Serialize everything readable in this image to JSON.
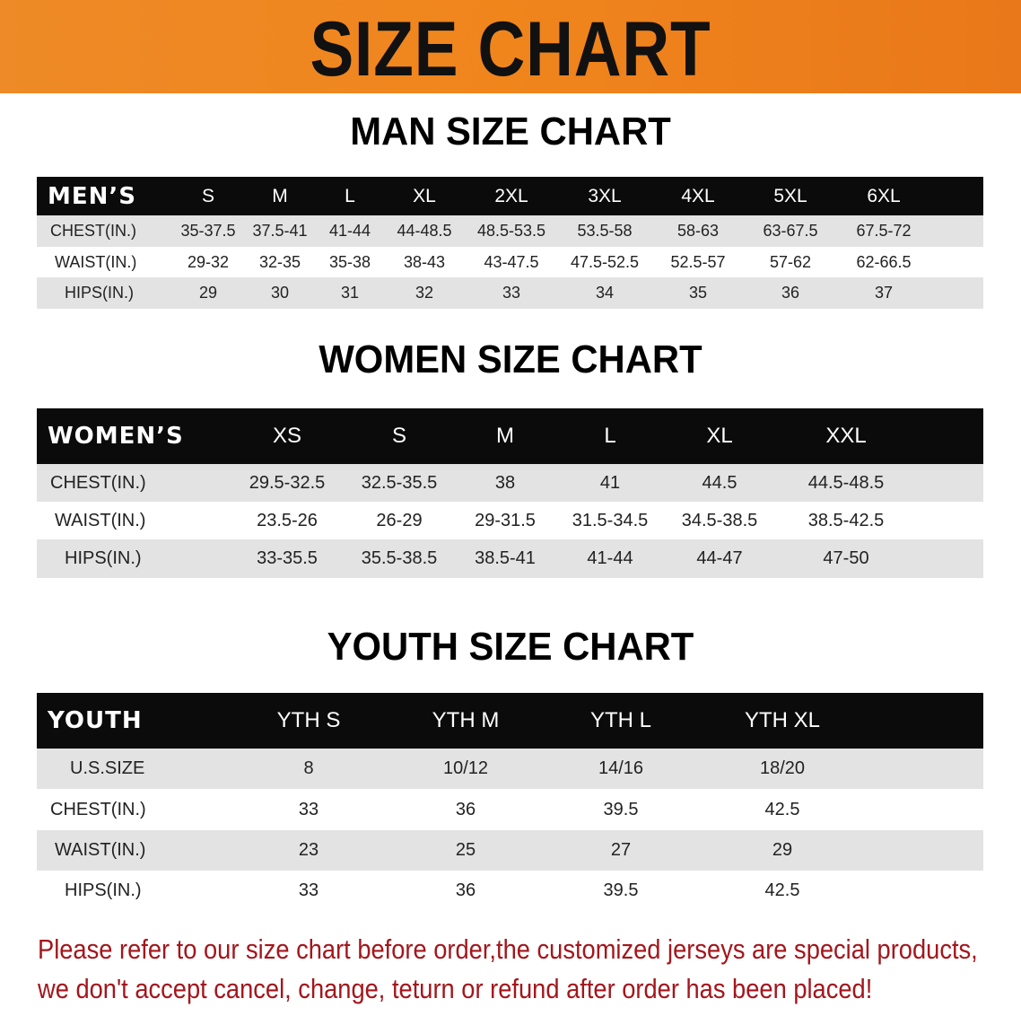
{
  "banner": {
    "title": "SIZE CHART",
    "color": "#ee8a27"
  },
  "men": {
    "title": "MAN SIZE CHART",
    "header_label": "MEN’S",
    "sizes": [
      "S",
      "M",
      "L",
      "XL",
      "2XL",
      "3XL",
      "4XL",
      "5XL",
      "6XL"
    ],
    "rows": [
      {
        "label": "CHEST(IN.)",
        "values": [
          "35-37.5",
          "37.5-41",
          "41-44",
          "44-48.5",
          "48.5-53.5",
          "53.5-58",
          "58-63",
          "63-67.5",
          "67.5-72"
        ]
      },
      {
        "label": "WAIST(IN.)",
        "values": [
          "29-32",
          "32-35",
          "35-38",
          "38-43",
          "43-47.5",
          "47.5-52.5",
          "52.5-57",
          "57-62",
          "62-66.5"
        ]
      },
      {
        "label": "HIPS(IN.)",
        "values": [
          "29",
          "30",
          "31",
          "32",
          "33",
          "34",
          "35",
          "36",
          "37"
        ]
      }
    ]
  },
  "women": {
    "title": "WOMEN SIZE CHART",
    "header_label": "WOMEN’S",
    "sizes": [
      "XS",
      "S",
      "M",
      "L",
      "XL",
      "XXL"
    ],
    "rows": [
      {
        "label": "CHEST(IN.)",
        "values": [
          "29.5-32.5",
          "32.5-35.5",
          "38",
          "41",
          "44.5",
          "44.5-48.5"
        ]
      },
      {
        "label": "WAIST(IN.)",
        "values": [
          "23.5-26",
          "26-29",
          "29-31.5",
          "31.5-34.5",
          "34.5-38.5",
          "38.5-42.5"
        ]
      },
      {
        "label": "HIPS(IN.)",
        "values": [
          "33-35.5",
          "35.5-38.5",
          "38.5-41",
          "41-44",
          "44-47",
          "47-50"
        ]
      }
    ]
  },
  "youth": {
    "title": "YOUTH SIZE CHART",
    "header_label": "YOUTH",
    "sizes": [
      "YTH S",
      "YTH M",
      "YTH L",
      "YTH XL"
    ],
    "rows": [
      {
        "label": "U.S.SIZE",
        "values": [
          "8",
          "10/12",
          "14/16",
          "18/20"
        ]
      },
      {
        "label": "CHEST(IN.)",
        "values": [
          "33",
          "36",
          "39.5",
          "42.5"
        ]
      },
      {
        "label": "WAIST(IN.)",
        "values": [
          "23",
          "25",
          "27",
          "29"
        ]
      },
      {
        "label": "HIPS(IN.)",
        "values": [
          "33",
          "36",
          "39.5",
          "42.5"
        ]
      }
    ]
  },
  "note": {
    "line1": "Please refer to our size chart before order,the customized jerseys are special products,",
    "line2": "we don't accept cancel, change, teturn or refund after order has been placed!",
    "color": "#a3161c"
  }
}
